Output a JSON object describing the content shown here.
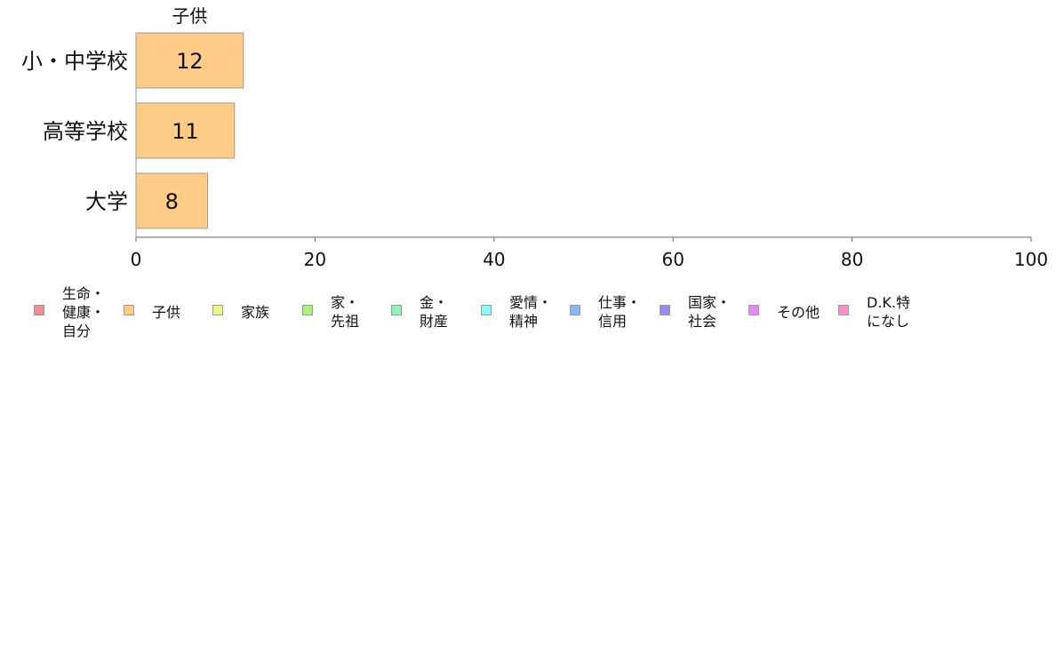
{
  "chart_data": {
    "type": "bar",
    "orientation": "horizontal",
    "series_name": "子供",
    "series_color": "#FFCC88",
    "categories": [
      "小・中学校",
      "高等学校",
      "大学"
    ],
    "values": [
      12,
      11,
      8
    ],
    "value_labels": [
      "12",
      "11",
      "8"
    ],
    "xlim": [
      0,
      100
    ],
    "xticks": [
      0,
      20,
      40,
      60,
      80,
      100
    ],
    "xtick_labels": [
      "0",
      "20",
      "40",
      "60",
      "80",
      "100"
    ],
    "grid": false,
    "legend_position": "bottom",
    "legend": [
      {
        "label": "生命・\n健康・\n自分",
        "color": "#F28B8B"
      },
      {
        "label": "子供",
        "color": "#FFCC88"
      },
      {
        "label": "家族",
        "color": "#EEF58A"
      },
      {
        "label": "家・\n先祖",
        "color": "#A8F07A"
      },
      {
        "label": "金・\n財産",
        "color": "#8AF5B0"
      },
      {
        "label": "愛情・\n精神",
        "color": "#8AF8F8"
      },
      {
        "label": "仕事・\n信用",
        "color": "#88B8F5"
      },
      {
        "label": "国家・\n社会",
        "color": "#9A8AF2"
      },
      {
        "label": "その他",
        "color": "#E488F5"
      },
      {
        "label": "D.K.特\nになし",
        "color": "#F590C8"
      }
    ]
  }
}
